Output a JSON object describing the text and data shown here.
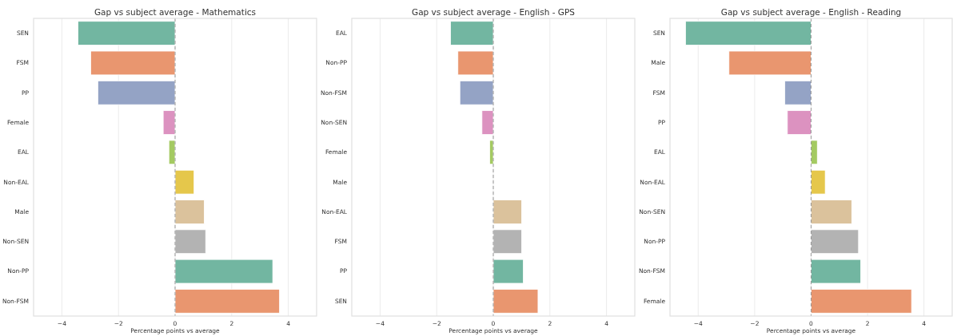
{
  "chart_data": [
    {
      "type": "bar",
      "orientation": "horizontal",
      "title": "Gap vs subject average - Mathematics",
      "xlabel": "Percentage points vs average",
      "categories": [
        "SEN",
        "FSM",
        "PP",
        "Female",
        "EAL",
        "Non-EAL",
        "Male",
        "Non-SEN",
        "Non-PP",
        "Non-FSM"
      ],
      "values": [
        -3.43,
        -2.98,
        -2.73,
        -0.42,
        -0.22,
        0.67,
        1.03,
        1.08,
        3.45,
        3.69
      ],
      "colors": [
        "#72b6a1",
        "#e9966f",
        "#94a3c5",
        "#dc92c0",
        "#a4ca62",
        "#e5c74b",
        "#dbc29c",
        "#b3b3b3",
        "#72b6a1",
        "#e9966f"
      ],
      "xlim": [
        -5,
        5
      ],
      "xticks": [
        -4,
        -2,
        0,
        2,
        4
      ],
      "grid": "x",
      "ref_lines": [
        {
          "axis": "x",
          "value": 0,
          "color": "#999999",
          "line_style": "dashed"
        }
      ]
    },
    {
      "type": "bar",
      "orientation": "horizontal",
      "title": "Gap vs subject average - English - GPS",
      "xlabel": "Percentage points vs average",
      "categories": [
        "EAL",
        "Non-PP",
        "Non-FSM",
        "Non-SEN",
        "Female",
        "Male",
        "Non-EAL",
        "FSM",
        "PP",
        "SEN"
      ],
      "values": [
        -1.51,
        -1.25,
        -1.18,
        -0.4,
        -0.13,
        0,
        1.0,
        1.0,
        1.06,
        1.58
      ],
      "colors": [
        "#72b6a1",
        "#e9966f",
        "#94a3c5",
        "#dc92c0",
        "#a4ca62",
        "#e5c74b",
        "#dbc29c",
        "#b3b3b3",
        "#72b6a1",
        "#e9966f"
      ],
      "xlim": [
        -5,
        5
      ],
      "xticks": [
        -4,
        -2,
        0,
        2,
        4
      ],
      "grid": "x",
      "ref_lines": [
        {
          "axis": "x",
          "value": 0,
          "color": "#999999",
          "line_style": "dashed"
        }
      ]
    },
    {
      "type": "bar",
      "orientation": "horizontal",
      "title": "Gap vs subject average - English - Reading",
      "xlabel": "Percentage points vs average",
      "categories": [
        "SEN",
        "Male",
        "FSM",
        "PP",
        "EAL",
        "Non-EAL",
        "Non-SEN",
        "Non-PP",
        "Non-FSM",
        "Female"
      ],
      "values": [
        -4.45,
        -2.91,
        -0.93,
        -0.84,
        0.22,
        0.5,
        1.44,
        1.68,
        1.76,
        3.56
      ],
      "colors": [
        "#72b6a1",
        "#e9966f",
        "#94a3c5",
        "#dc92c0",
        "#a4ca62",
        "#e5c74b",
        "#dbc29c",
        "#b3b3b3",
        "#72b6a1",
        "#e9966f"
      ],
      "xlim": [
        -5,
        5
      ],
      "xticks": [
        -4,
        -2,
        0,
        2,
        4
      ],
      "grid": "x",
      "ref_lines": [
        {
          "axis": "x",
          "value": 0,
          "color": "#999999",
          "line_style": "dashed"
        }
      ]
    }
  ]
}
